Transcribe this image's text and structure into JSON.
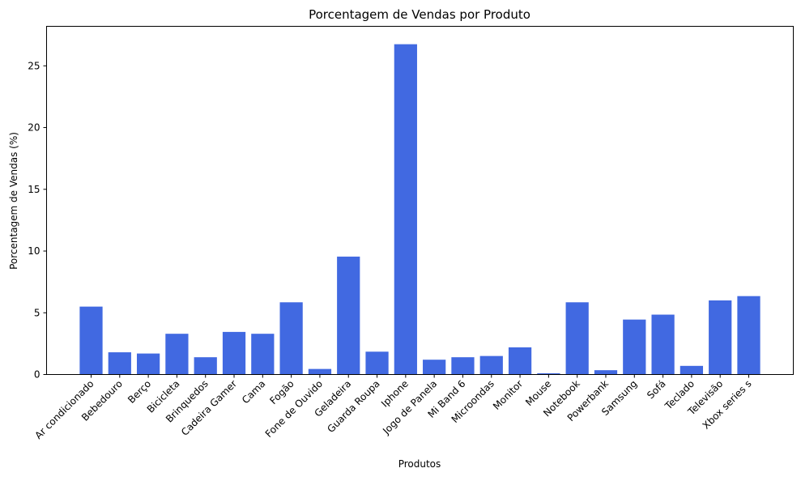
{
  "chart_data": {
    "type": "bar",
    "title": "Porcentagem de Vendas por Produto",
    "xlabel": "Produtos",
    "ylabel": "Porcentagem de Vendas (%)",
    "ylim": [
      0,
      28.2
    ],
    "yticks": [
      0,
      5,
      10,
      15,
      20,
      25
    ],
    "grid": false,
    "bar_color": "#4169E1",
    "categories": [
      "Ar condicionado",
      "Bebedouro",
      "Berço",
      "Bicicleta",
      "Brinquedos",
      "Cadeira Gamer",
      "Cama",
      "Fogão",
      "Fone de Ouvido",
      "Geladeira",
      "Guarda Roupa",
      "Iphone",
      "Jogo de Panela",
      "Mi Band 6",
      "Microondas",
      "Monitor",
      "Mouse",
      "Notebook",
      "Powerbank",
      "Samsung",
      "Sofá",
      "Teclado",
      "Televisão",
      "Xbox series s"
    ],
    "values": [
      5.5,
      1.8,
      1.7,
      3.3,
      1.4,
      3.45,
      3.3,
      5.85,
      0.45,
      9.55,
      1.85,
      26.75,
      1.2,
      1.4,
      1.5,
      2.2,
      0.1,
      5.85,
      0.35,
      4.45,
      4.85,
      0.7,
      6.0,
      6.35
    ]
  }
}
